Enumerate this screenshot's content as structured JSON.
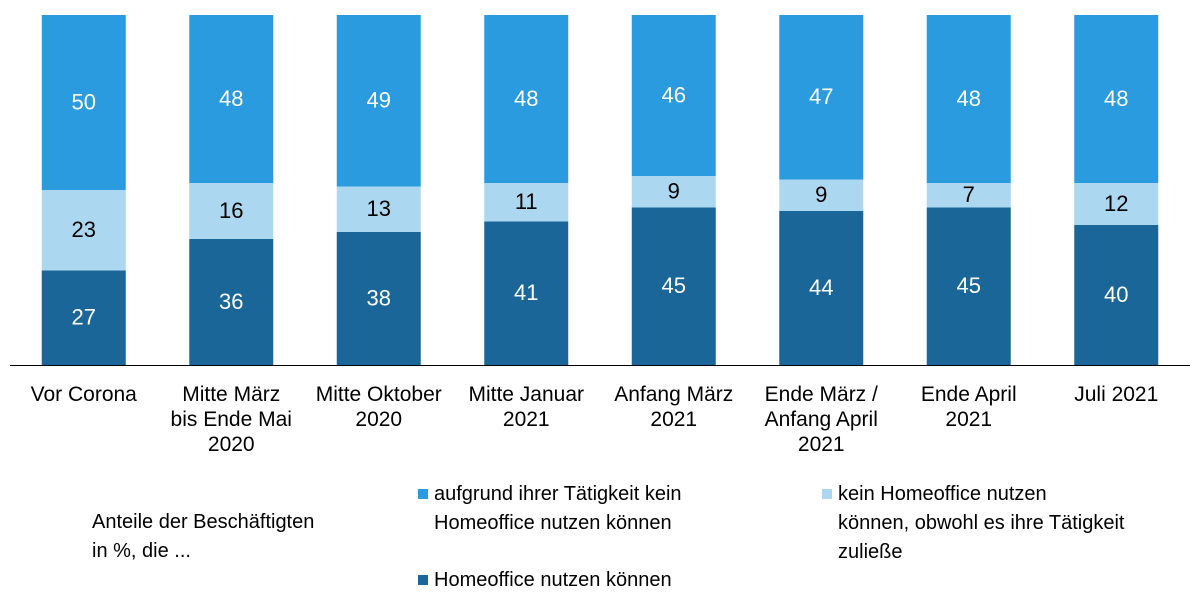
{
  "chart_data": {
    "type": "stacked_bar",
    "categories": [
      "Vor Corona",
      "Mitte März\nbis Ende Mai\n2020",
      "Mitte Oktober\n2020",
      "Mitte Januar\n2021",
      "Anfang März\n2021",
      "Ende März /\nAnfang April\n2021",
      "Ende April\n2021",
      "Juli 2021"
    ],
    "ylim": [
      0,
      100
    ],
    "legend_title": "Anteile der Beschäftigten\nin %, die ...",
    "series": [
      {
        "name": "Homeoffice nutzen können",
        "color": "#1b6699",
        "label_color": "#ffffff",
        "values": [
          27,
          36,
          38,
          41,
          45,
          44,
          45,
          40
        ]
      },
      {
        "name": "kein Homeoffice nutzen\nkönnen, obwohl es ihre Tätigkeit\nzuließe",
        "color": "#acd7f0",
        "label_color": "#000000",
        "values": [
          23,
          16,
          13,
          11,
          9,
          9,
          7,
          12
        ]
      },
      {
        "name": "aufgrund ihrer Tätigkeit kein\nHomeoffice nutzen können",
        "color": "#2b9be0",
        "label_color": "#ffffff",
        "values": [
          50,
          48,
          49,
          48,
          46,
          47,
          48,
          48
        ]
      }
    ]
  }
}
